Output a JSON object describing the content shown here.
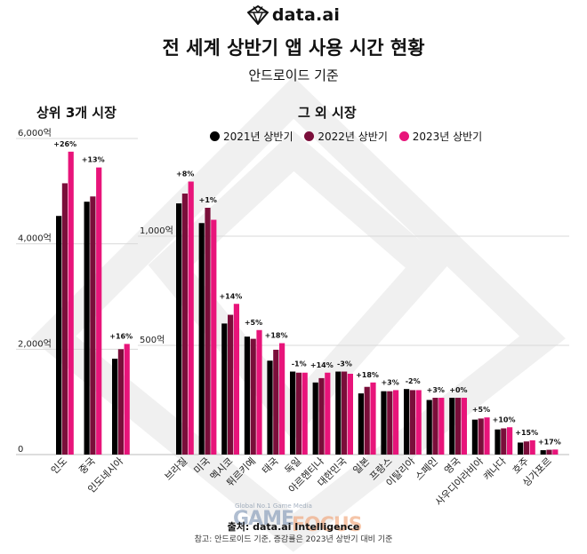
{
  "brand": {
    "name": "data.ai"
  },
  "title": "전 세계 상반기 앱 사용 시간 현황",
  "subtitle": "안드로이드 기준",
  "colors": {
    "y2021": "#000000",
    "y2022": "#7a0e3a",
    "y2023": "#e8147a",
    "grid": "#d9d9d9",
    "bg_shape": "#f0f0f0"
  },
  "footer": {
    "source": "출처: data.ai Intelligence",
    "note": "참고: 안드로이드 기준, 증감률은 2023년 상반기 대비 기준"
  },
  "watermark": {
    "small": "Global No.1 Game Media",
    "game": "GAME",
    "focus": "FOCUS"
  },
  "chart_data": [
    {
      "type": "bar",
      "title": "상위 3개 시장",
      "y_tick_labels": [
        "0",
        "2,000억",
        "4,000억",
        "6,000억"
      ],
      "ylim": [
        0,
        6000
      ],
      "grid": true,
      "categories": [
        "인도",
        "중국",
        "인도네시아"
      ],
      "series": [
        {
          "name": "2021년 상반기",
          "values": [
            4530,
            4800,
            1820
          ]
        },
        {
          "name": "2022년 상반기",
          "values": [
            5150,
            4900,
            2000
          ]
        },
        {
          "name": "2023년 상반기",
          "values": [
            5750,
            5450,
            2100
          ]
        }
      ],
      "annotations": [
        "+26%",
        "+13%",
        "+16%"
      ]
    },
    {
      "type": "bar",
      "title": "그 외 시장",
      "legend_position": "top",
      "y_tick_labels": [
        "500억",
        "1,000억"
      ],
      "ylim": [
        0,
        1400
      ],
      "grid": true,
      "categories": [
        "브라질",
        "미국",
        "멕시코",
        "튀르키예",
        "태국",
        "독일",
        "아르헨티나",
        "대한민국",
        "일본",
        "프랑스",
        "이탈리아",
        "스페인",
        "영국",
        "사우디아라비아",
        "캐나다",
        "호주",
        "싱가포르"
      ],
      "series": [
        {
          "name": "2021년 상반기",
          "values": [
            1150,
            1060,
            600,
            540,
            430,
            380,
            330,
            380,
            280,
            290,
            300,
            250,
            260,
            160,
            115,
            55,
            20
          ]
        },
        {
          "name": "2022년 상반기",
          "values": [
            1195,
            1130,
            640,
            530,
            480,
            375,
            350,
            380,
            310,
            290,
            295,
            260,
            260,
            165,
            120,
            60,
            22
          ]
        },
        {
          "name": "2023년 상반기",
          "values": [
            1250,
            1075,
            690,
            570,
            510,
            375,
            375,
            370,
            330,
            295,
            295,
            260,
            260,
            170,
            125,
            65,
            23
          ]
        }
      ],
      "annotations": [
        "+8%",
        "+1%",
        "+14%",
        "+5%",
        "+18%",
        "-1%",
        "+14%",
        "-3%",
        "+18%",
        "+3%",
        "-2%",
        "+3%",
        "+0%",
        "+5%",
        "+10%",
        "+15%",
        "+17%"
      ]
    }
  ]
}
